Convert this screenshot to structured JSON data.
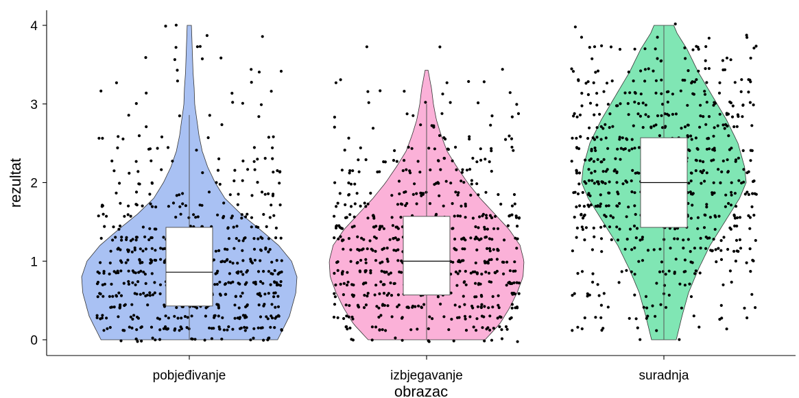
{
  "chart_data": {
    "type": "violin",
    "xlabel": "obrazac",
    "ylabel": "rezultat",
    "ylim": [
      0,
      4
    ],
    "yticks": [
      0,
      1,
      2,
      3,
      4
    ],
    "grid": false,
    "legend": "none",
    "categories": [
      "pobjeđivanje",
      "izbjegavanje",
      "suradnja"
    ],
    "colors": [
      "#a9c1f3",
      "#fbb1d8",
      "#80e6b4"
    ],
    "groups": [
      {
        "name": "pobjeđivanje",
        "box": {
          "whisker_low": 0.0,
          "q1": 0.43,
          "median": 0.86,
          "q3": 1.43,
          "whisker_high": 2.86
        },
        "violin_range": [
          0,
          4
        ],
        "violin_profile": [
          [
            0.0,
            0.82
          ],
          [
            0.3,
            0.93
          ],
          [
            0.6,
            0.99
          ],
          [
            0.8,
            1.0
          ],
          [
            1.0,
            0.95
          ],
          [
            1.2,
            0.83
          ],
          [
            1.4,
            0.66
          ],
          [
            1.6,
            0.48
          ],
          [
            1.8,
            0.33
          ],
          [
            2.0,
            0.24
          ],
          [
            2.2,
            0.17
          ],
          [
            2.4,
            0.12
          ],
          [
            2.6,
            0.09
          ],
          [
            2.8,
            0.07
          ],
          [
            3.0,
            0.05
          ],
          [
            3.2,
            0.045
          ],
          [
            3.4,
            0.035
          ],
          [
            3.6,
            0.03
          ],
          [
            3.8,
            0.025
          ],
          [
            4.0,
            0.02
          ]
        ],
        "points_note": "jittered raw observations, values in multiples of 1/7"
      },
      {
        "name": "izbjegavanje",
        "box": {
          "whisker_low": 0.0,
          "q1": 0.57,
          "median": 1.0,
          "q3": 1.57,
          "whisker_high": 3.0
        },
        "violin_range": [
          0,
          3.43
        ],
        "violin_profile": [
          [
            0.0,
            0.6
          ],
          [
            0.2,
            0.75
          ],
          [
            0.4,
            0.85
          ],
          [
            0.6,
            0.93
          ],
          [
            0.8,
            0.99
          ],
          [
            1.0,
            1.0
          ],
          [
            1.2,
            0.96
          ],
          [
            1.4,
            0.85
          ],
          [
            1.6,
            0.7
          ],
          [
            1.8,
            0.55
          ],
          [
            2.0,
            0.42
          ],
          [
            2.2,
            0.31
          ],
          [
            2.4,
            0.21
          ],
          [
            2.6,
            0.15
          ],
          [
            2.8,
            0.1
          ],
          [
            3.0,
            0.07
          ],
          [
            3.2,
            0.05
          ],
          [
            3.43,
            0.015
          ]
        ],
        "points_note": "jittered raw observations, values in multiples of 1/7"
      },
      {
        "name": "suradnja",
        "box": {
          "whisker_low": 0.0,
          "q1": 1.43,
          "median": 2.0,
          "q3": 2.57,
          "whisker_high": 4.0
        },
        "violin_range": [
          0,
          4
        ],
        "violin_profile": [
          [
            0.0,
            0.15
          ],
          [
            0.3,
            0.22
          ],
          [
            0.6,
            0.3
          ],
          [
            0.9,
            0.42
          ],
          [
            1.2,
            0.56
          ],
          [
            1.5,
            0.74
          ],
          [
            1.8,
            0.92
          ],
          [
            2.0,
            1.0
          ],
          [
            2.2,
            0.98
          ],
          [
            2.5,
            0.9
          ],
          [
            2.8,
            0.76
          ],
          [
            3.1,
            0.59
          ],
          [
            3.4,
            0.42
          ],
          [
            3.7,
            0.28
          ],
          [
            3.9,
            0.16
          ],
          [
            4.0,
            0.12
          ]
        ],
        "points_note": "jittered raw observations, values in multiples of 1/7"
      }
    ]
  }
}
